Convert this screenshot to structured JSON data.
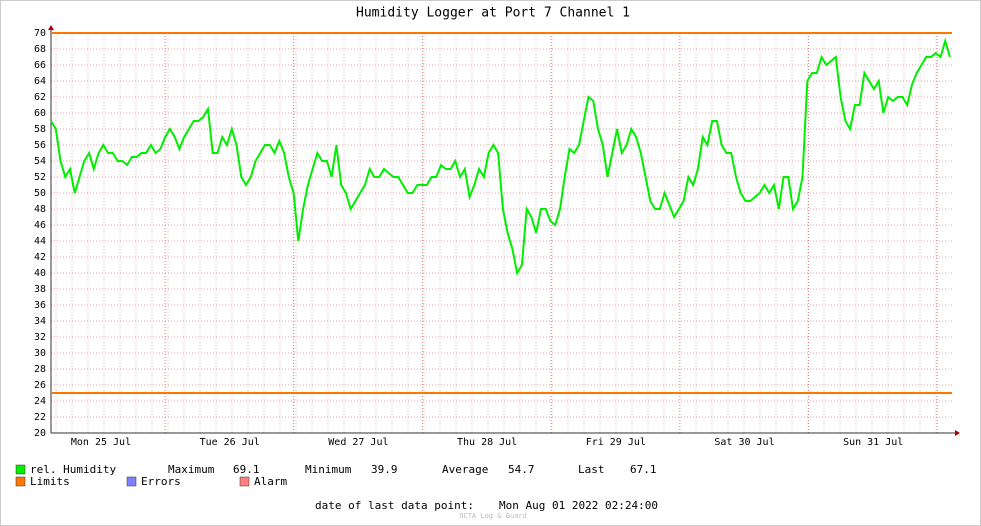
{
  "chart_data": {
    "type": "line",
    "title": "Humidity Logger at Port 7 Channel 1",
    "ylim": [
      20,
      70
    ],
    "yticks": [
      20,
      22,
      24,
      26,
      28,
      30,
      32,
      34,
      36,
      38,
      40,
      42,
      44,
      46,
      48,
      50,
      52,
      54,
      56,
      58,
      60,
      62,
      64,
      66,
      68,
      70
    ],
    "grid": true,
    "xticks": [
      "Mon 25 Jul",
      "Tue 26 Jul",
      "Wed 27 Jul",
      "Thu 28 Jul",
      "Fri 29 Jul",
      "Sat 30 Jul",
      "Sun 31 Jul"
    ],
    "series": [
      {
        "name": "rel. Humidity",
        "color": "#00ee00",
        "values": [
          59,
          58,
          54,
          52,
          53,
          50,
          52,
          54,
          55,
          53,
          55,
          56,
          55,
          55,
          54,
          54,
          53.5,
          54.5,
          54.5,
          55,
          55,
          56,
          55,
          55.5,
          57,
          58,
          57,
          55.5,
          57,
          58,
          59,
          59,
          59.5,
          60.5,
          55,
          55,
          57,
          56,
          58,
          56,
          52,
          51,
          52,
          54,
          55,
          56,
          56,
          55,
          56.5,
          55,
          52,
          50,
          44,
          48,
          51,
          53,
          55,
          54,
          54,
          52,
          56,
          51,
          50,
          48,
          49,
          50,
          51,
          53,
          52,
          52,
          53,
          52.5,
          52,
          52,
          51,
          50,
          50,
          51,
          51,
          51,
          52,
          52,
          53.5,
          53,
          53,
          54,
          52,
          53,
          49.5,
          51,
          53,
          52,
          55,
          56,
          55,
          48,
          45,
          43,
          40,
          41,
          48,
          47,
          45,
          48,
          48,
          46.5,
          46,
          48,
          52,
          55.5,
          55,
          56,
          59,
          62,
          61.5,
          58,
          56,
          52,
          55,
          58,
          55,
          56,
          58,
          57,
          55,
          52,
          49,
          48,
          48,
          50,
          48.5,
          47,
          48,
          49,
          52,
          51,
          53,
          57,
          56,
          59,
          59,
          56,
          55,
          55,
          52,
          50,
          49,
          49,
          49.5,
          50,
          51,
          50,
          51,
          48,
          52,
          52,
          48,
          49,
          52,
          64,
          65,
          65,
          67,
          66,
          66.5,
          67,
          62,
          59,
          58,
          61,
          61,
          65,
          64,
          63,
          64,
          60,
          62,
          61.5,
          62,
          62,
          61,
          63.5,
          65,
          66,
          67,
          67,
          67.5,
          67,
          69,
          67
        ]
      }
    ],
    "limits": {
      "name": "Limits",
      "color": "#ff7700",
      "values": [
        70,
        25
      ]
    },
    "legend_extra": [
      {
        "name": "Errors",
        "color": "#7f7fff"
      },
      {
        "name": "Alarm",
        "color": "#ff7f7f"
      }
    ],
    "stats": [
      {
        "label": "Maximum",
        "value": 69.1
      },
      {
        "label": "Minimum",
        "value": 39.9
      },
      {
        "label": "Average",
        "value": 54.7
      },
      {
        "label": "Last",
        "value": 67.1
      }
    ],
    "footer_label": "date of last data point:",
    "footer_value": "Mon Aug 01 2022 02:24:00",
    "watermark": "OCTA Log & Guard"
  }
}
